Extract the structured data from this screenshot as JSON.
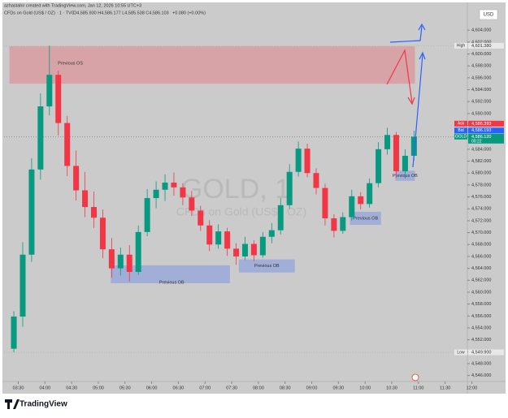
{
  "header": {
    "credit": "azhastahir created with TradingView.com, Jan 12, 2026 10:55 UTC+3",
    "symbol": "CFDs on Gold (US$ / OZ) · 1 · TVC",
    "ohlc": "O4,585.930 H4,586.177 L4,585.538 C4,586.103",
    "change": "+0.080 (+0.00%)",
    "currency": "USD"
  },
  "watermark": {
    "ticker": "GOLD, 1",
    "name": "CFDs on Gold (US$ / OZ)"
  },
  "footer": {
    "brand": "TradingView"
  },
  "chart_data": {
    "type": "candlestick",
    "up_color": "#089981",
    "down_color": "#f23645",
    "x": [
      "03:20",
      "03:30",
      "03:40",
      "03:50",
      "04:00",
      "04:10",
      "04:20",
      "04:30",
      "04:40",
      "04:50",
      "05:00",
      "05:10",
      "05:20",
      "05:30",
      "05:40",
      "05:50",
      "06:00",
      "06:10",
      "06:20",
      "06:30",
      "06:40",
      "06:50",
      "07:00",
      "07:10",
      "07:20",
      "07:30",
      "07:40",
      "07:50",
      "08:00",
      "08:10",
      "08:20",
      "08:30",
      "08:40",
      "08:50",
      "09:00",
      "09:10",
      "09:20",
      "09:30",
      "09:40",
      "09:50",
      "10:00",
      "10:10",
      "10:20",
      "10:30",
      "10:40",
      "10:50"
    ],
    "open": [
      4550.5,
      4555.9,
      4566.3,
      4580.6,
      4591.2,
      4596.5,
      4588.4,
      4581.2,
      4577.1,
      4574.3,
      4572.5,
      4567.2,
      4564.0,
      4566.3,
      4563.4,
      4570.1,
      4575.8,
      4577.2,
      4578.4,
      4577.6,
      4575.9,
      4573.7,
      4571.2,
      4568.0,
      4570.2,
      4567.3,
      4566.0,
      4568.1,
      4566.2,
      4569.3,
      4570.4,
      4574.6,
      4580.2,
      4584.1,
      4580.0,
      4577.5,
      4572.4,
      4570.3,
      4572.6,
      4576.1,
      4574.8,
      4578.3,
      4584.0,
      4586.4,
      4580.3,
      4582.9
    ],
    "high": [
      4556.8,
      4568.4,
      4582.5,
      4593.4,
      4601.4,
      4597.2,
      4589.6,
      4583.8,
      4580.2,
      4576.9,
      4573.9,
      4569.1,
      4567.5,
      4567.9,
      4571.2,
      4577.3,
      4578.6,
      4579.8,
      4580.1,
      4578.3,
      4577.0,
      4574.5,
      4572.1,
      4571.4,
      4570.8,
      4568.2,
      4569.3,
      4568.7,
      4570.1,
      4571.6,
      4575.8,
      4581.5,
      4585.3,
      4584.9,
      4580.8,
      4578.2,
      4573.1,
      4573.4,
      4577.2,
      4576.8,
      4579.1,
      4585.2,
      4587.6,
      4586.9,
      4584.0,
      4587.1
    ],
    "low": [
      4549.9,
      4554.2,
      4565.1,
      4578.9,
      4589.7,
      4586.3,
      4579.5,
      4575.4,
      4572.6,
      4570.8,
      4565.7,
      4562.4,
      4562.8,
      4561.8,
      4562.9,
      4569.4,
      4574.1,
      4575.3,
      4576.2,
      4574.6,
      4572.8,
      4570.3,
      4566.9,
      4567.3,
      4566.1,
      4564.6,
      4565.4,
      4565.2,
      4565.8,
      4568.2,
      4569.7,
      4574.0,
      4579.4,
      4579.3,
      4576.4,
      4571.2,
      4569.2,
      4569.8,
      4572.0,
      4573.9,
      4574.2,
      4577.6,
      4583.1,
      4579.2,
      4579.1,
      4582.1
    ],
    "close": [
      4555.9,
      4566.3,
      4580.6,
      4591.2,
      4596.5,
      4588.4,
      4581.2,
      4577.1,
      4574.3,
      4572.5,
      4567.2,
      4564.0,
      4566.3,
      4563.4,
      4570.1,
      4575.8,
      4577.2,
      4578.4,
      4577.6,
      4575.9,
      4573.7,
      4571.2,
      4568.0,
      4570.2,
      4567.3,
      4566.0,
      4568.1,
      4566.2,
      4569.3,
      4570.4,
      4574.6,
      4580.2,
      4584.1,
      4580.0,
      4577.5,
      4572.4,
      4570.3,
      4572.6,
      4576.1,
      4574.8,
      4578.3,
      4584.0,
      4586.4,
      4580.3,
      4582.9,
      4586.1
    ],
    "xlim": [
      "03:14",
      "11:55"
    ],
    "xticks": [
      "03:30",
      "04:00",
      "04:30",
      "05:00",
      "05:30",
      "06:00",
      "06:30",
      "07:00",
      "07:30",
      "08:00",
      "08:30",
      "09:00",
      "09:30",
      "10:00",
      "10:30",
      "11:00",
      "11:30",
      "12:00"
    ],
    "ylim": [
      4545,
      4607.7
    ],
    "yticks": [
      {
        "value": 4546,
        "label": "4,546.000"
      },
      {
        "value": 4548,
        "label": "4,548.000"
      },
      {
        "value": 4550,
        "label": "4,550.000"
      },
      {
        "value": 4552,
        "label": "4,552.000"
      },
      {
        "value": 4554,
        "label": "4,554.000"
      },
      {
        "value": 4556,
        "label": "4,556.000"
      },
      {
        "value": 4558,
        "label": "4,558.000"
      },
      {
        "value": 4560,
        "label": "4,560.000"
      },
      {
        "value": 4562,
        "label": "4,562.000"
      },
      {
        "value": 4564,
        "label": "4,564.000"
      },
      {
        "value": 4566,
        "label": "4,566.000"
      },
      {
        "value": 4568,
        "label": "4,568.000"
      },
      {
        "value": 4570,
        "label": "4,570.000"
      },
      {
        "value": 4572,
        "label": "4,572.000"
      },
      {
        "value": 4574,
        "label": "4,574.000"
      },
      {
        "value": 4576,
        "label": "4,576.000"
      },
      {
        "value": 4578,
        "label": "4,578.000"
      },
      {
        "value": 4580,
        "label": "4,580.000"
      },
      {
        "value": 4582,
        "label": "4,582.000"
      },
      {
        "value": 4584,
        "label": "4,584.000"
      },
      {
        "value": 4586,
        "label": "4,586.000"
      },
      {
        "value": 4588,
        "label": "4,588.000"
      },
      {
        "value": 4590,
        "label": "4,590.000"
      },
      {
        "value": 4592,
        "label": "4,592.000"
      },
      {
        "value": 4594,
        "label": "4,594.000"
      },
      {
        "value": 4596,
        "label": "4,596.000"
      },
      {
        "value": 4598,
        "label": "4,598.000"
      },
      {
        "value": 4600,
        "label": "4,600.000"
      },
      {
        "value": 4602,
        "label": "4,602.000"
      },
      {
        "value": 4604,
        "label": "4,604.000"
      }
    ],
    "zones": [
      {
        "label": "Previous OS",
        "start": "03:20",
        "end": "10:56",
        "top": 4601.3,
        "bottom": 4595.0,
        "color": "rgba(240,90,100,0.35)"
      },
      {
        "label": "Previous OB",
        "start": "05:14",
        "end": "07:28",
        "top": 4564.5,
        "bottom": 4561.5,
        "color": "rgba(110,140,230,0.45)"
      },
      {
        "label": "Previous OB",
        "start": "07:38",
        "end": "08:41",
        "top": 4565.5,
        "bottom": 4563.3,
        "color": "rgba(110,140,230,0.45)"
      },
      {
        "label": "Previous OB",
        "start": "09:43",
        "end": "10:18",
        "top": 4573.5,
        "bottom": 4571.3,
        "color": "rgba(110,140,230,0.45)"
      },
      {
        "label": "Previous OB",
        "start": "10:34",
        "end": "10:56",
        "top": 4580.4,
        "bottom": 4578.7,
        "color": "rgba(110,140,230,0.45)"
      }
    ],
    "price_labels": [
      {
        "tag": "High",
        "value": 4601.38,
        "label": "4,601.380",
        "color": "#e8e8e8",
        "text_color": "#333"
      },
      {
        "tag": "Ask",
        "value": 4586.393,
        "label": "4,586.393",
        "color": "#f23645",
        "text_color": "#fff"
      },
      {
        "tag": "Bid",
        "value": 4586.193,
        "label": "4,586.193",
        "color": "#2962ff",
        "text_color": "#fff"
      },
      {
        "tag": "GOLD",
        "value": 4586.12,
        "label": "4,586.120",
        "extra": "00:22",
        "color": "#089981",
        "text_color": "#fff"
      },
      {
        "tag": "Low",
        "value": 4549.9,
        "label": "4,549.900",
        "color": "#e8e8e8",
        "text_color": "#333"
      }
    ]
  }
}
